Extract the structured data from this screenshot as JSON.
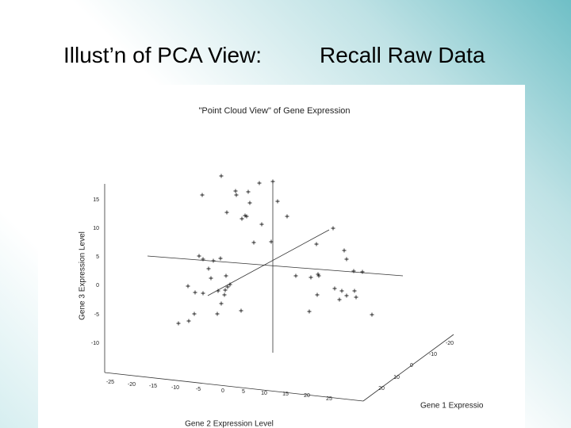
{
  "slide": {
    "title_left": "Illust’n of PCA View:",
    "title_right": "Recall Raw Data"
  },
  "figure": {
    "title": "\"Point Cloud View\" of Gene Expression",
    "z_label": "Gene 3 Expression Level",
    "x_label": "Gene 2 Expression Level",
    "y_label": "Gene 1 Expressio",
    "z_ticks": [
      15,
      10,
      5,
      0,
      -5,
      -10
    ],
    "x_ticks": [
      -25,
      -20,
      -15,
      -10,
      -5,
      0,
      5,
      10,
      15,
      20,
      25
    ],
    "y_ticks": [
      -20,
      -10,
      0,
      10,
      20
    ]
  }
}
